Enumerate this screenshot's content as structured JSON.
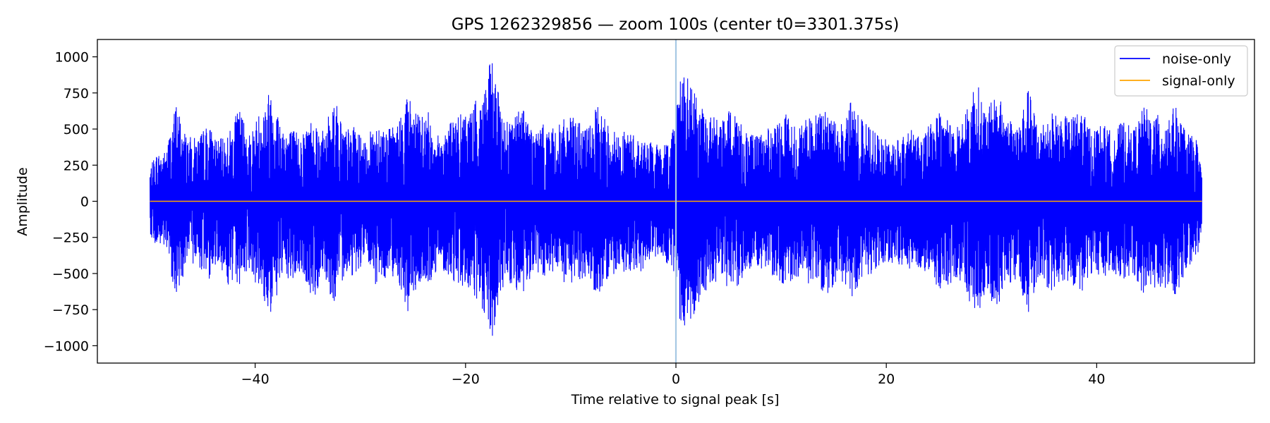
{
  "chart_data": {
    "type": "line",
    "title": "GPS 1262329856 — zoom 100s (center t0=3301.375s)",
    "xlabel": "Time relative to signal peak [s]",
    "ylabel": "Amplitude",
    "xlim": [
      -55,
      55
    ],
    "ylim": [
      -1120,
      1120
    ],
    "xticks": [
      -40,
      -20,
      0,
      20,
      40
    ],
    "xtick_labels": [
      "−40",
      "−20",
      "0",
      "20",
      "40"
    ],
    "yticks": [
      1000,
      750,
      500,
      250,
      0,
      -250,
      -500,
      -750,
      -1000
    ],
    "ytick_labels": [
      "1000",
      "750",
      "500",
      "250",
      "0",
      "−250",
      "−500",
      "−750",
      "−1000"
    ],
    "grid": false,
    "legend_position": "top-right",
    "vline_x": 0,
    "vline_color": "#a6c8e4",
    "x_range": [
      -50,
      50
    ],
    "series": [
      {
        "name": "noise-only",
        "color": "#0000ff",
        "envelope_x": [
          -50,
          -49.5,
          -48.5,
          -47.5,
          -46.5,
          -45.5,
          -44.5,
          -43.5,
          -42.5,
          -41.5,
          -40.5,
          -39.5,
          -38.5,
          -37.5,
          -36.5,
          -35.5,
          -34.5,
          -33.5,
          -32.5,
          -31.5,
          -30.5,
          -29.5,
          -28.5,
          -27.5,
          -26.5,
          -25.5,
          -24.5,
          -23.5,
          -22.5,
          -21.5,
          -20.5,
          -19.5,
          -18.5,
          -17.5,
          -16.5,
          -15.5,
          -14.5,
          -13.5,
          -12.5,
          -11.5,
          -10.5,
          -9.5,
          -8.5,
          -7.5,
          -6.5,
          -5.5,
          -4.5,
          -3.5,
          -2.5,
          -1.5,
          -0.5,
          0.5,
          1.5,
          2.5,
          3.5,
          4.5,
          5.5,
          6.5,
          7.5,
          8.5,
          9.5,
          10.5,
          11.5,
          12.5,
          13.5,
          14.5,
          15.5,
          16.5,
          17.5,
          18.5,
          19.5,
          20.5,
          21.5,
          22.5,
          23.5,
          24.5,
          25.5,
          26.5,
          27.5,
          28.5,
          29.5,
          30.5,
          31.5,
          32.5,
          33.5,
          34.5,
          35.5,
          36.5,
          37.5,
          38.5,
          39.5,
          40.5,
          41.5,
          42.5,
          43.5,
          44.5,
          45.5,
          46.5,
          47.5,
          48.5,
          49.5,
          50
        ],
        "envelope_max": [
          220,
          330,
          350,
          690,
          450,
          440,
          540,
          420,
          480,
          650,
          470,
          640,
          800,
          550,
          500,
          480,
          600,
          480,
          740,
          500,
          520,
          400,
          580,
          500,
          530,
          750,
          600,
          620,
          440,
          560,
          600,
          650,
          750,
          1000,
          600,
          580,
          690,
          480,
          540,
          500,
          580,
          580,
          500,
          660,
          560,
          460,
          500,
          430,
          420,
          380,
          440,
          920,
          820,
          640,
          600,
          560,
          680,
          500,
          450,
          500,
          520,
          620,
          520,
          580,
          600,
          660,
          500,
          700,
          580,
          520,
          430,
          440,
          460,
          500,
          460,
          620,
          600,
          560,
          600,
          860,
          620,
          760,
          600,
          540,
          780,
          520,
          620,
          600,
          580,
          640,
          500,
          540,
          480,
          560,
          500,
          660,
          600,
          600,
          660,
          480,
          430,
          200
        ],
        "envelope_min": [
          -220,
          -310,
          -330,
          -680,
          -440,
          -430,
          -560,
          -410,
          -600,
          -580,
          -460,
          -660,
          -800,
          -560,
          -560,
          -500,
          -720,
          -480,
          -740,
          -500,
          -520,
          -400,
          -600,
          -520,
          -520,
          -780,
          -580,
          -600,
          -440,
          -540,
          -580,
          -640,
          -760,
          -1010,
          -600,
          -580,
          -700,
          -480,
          -560,
          -500,
          -600,
          -560,
          -520,
          -650,
          -560,
          -500,
          -480,
          -500,
          -420,
          -380,
          -460,
          -900,
          -820,
          -640,
          -600,
          -560,
          -680,
          -500,
          -450,
          -500,
          -520,
          -620,
          -520,
          -580,
          -600,
          -660,
          -520,
          -700,
          -560,
          -520,
          -440,
          -440,
          -460,
          -500,
          -460,
          -600,
          -620,
          -560,
          -620,
          -840,
          -620,
          -760,
          -600,
          -540,
          -780,
          -520,
          -620,
          -600,
          -580,
          -640,
          -500,
          -540,
          -480,
          -560,
          -500,
          -660,
          -600,
          -600,
          -660,
          -480,
          -430,
          -200
        ]
      },
      {
        "name": "signal-only",
        "color": "#ffa500",
        "x": [
          -50,
          50
        ],
        "y": [
          0,
          0
        ]
      }
    ]
  }
}
